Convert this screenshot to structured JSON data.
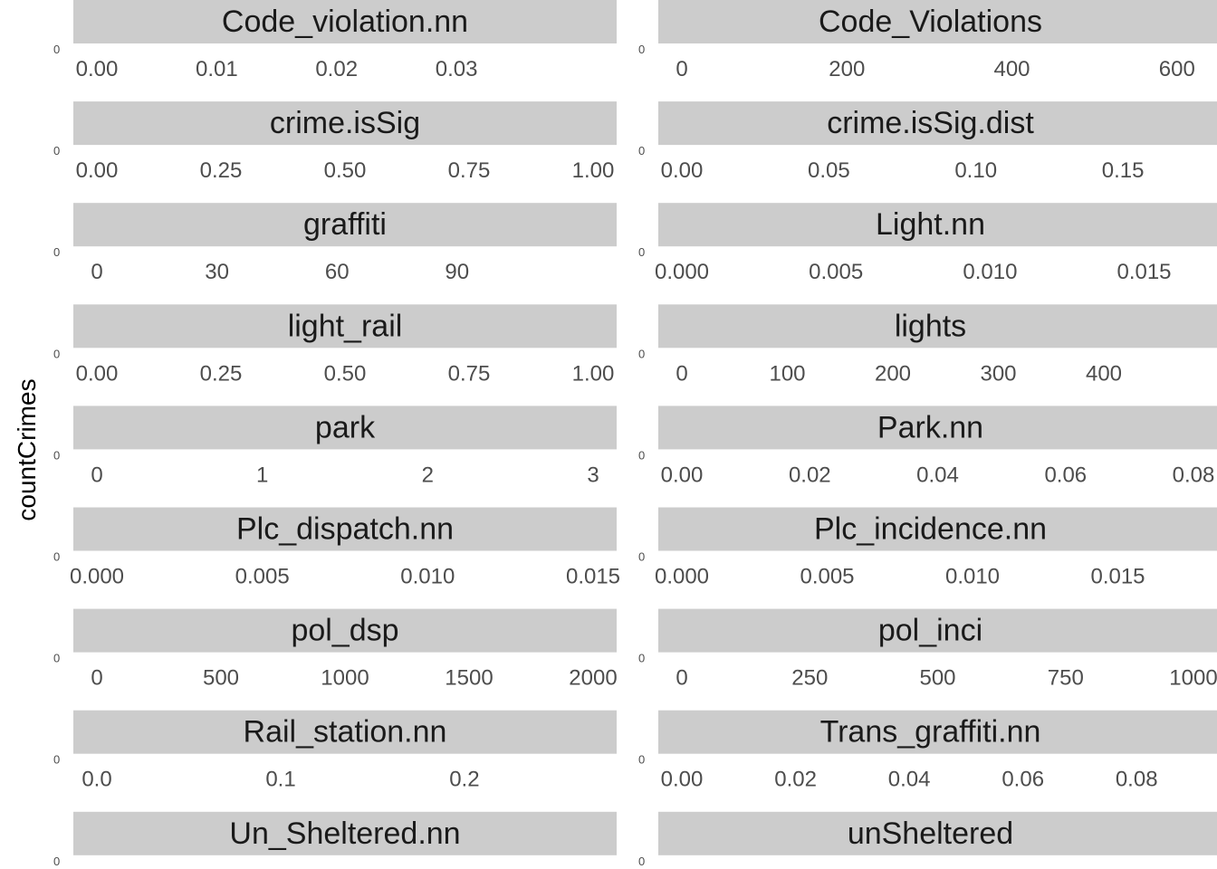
{
  "chart_data": {
    "type": "scatter",
    "ylabel": "countCrimes",
    "facet_strip_color": "#cccccc",
    "tick_color": "#4d4d4d",
    "panels": [
      {
        "title": "Code_violation.nn",
        "xticks": [
          "0.00",
          "0.01",
          "0.02",
          "0.03"
        ],
        "xticks_values": [
          0.0,
          0.01,
          0.02,
          0.03
        ],
        "xlim": [
          0.0,
          0.0414
        ]
      },
      {
        "title": "Code_Violations",
        "xticks": [
          "0",
          "200",
          "400",
          "600"
        ],
        "xticks_values": [
          0,
          200,
          400,
          600
        ],
        "xlim": [
          0,
          620
        ]
      },
      {
        "title": "crime.isSig",
        "xticks": [
          "0.00",
          "0.25",
          "0.50",
          "0.75",
          "1.00"
        ],
        "xticks_values": [
          0.0,
          0.25,
          0.5,
          0.75,
          1.0
        ],
        "xlim": [
          0.0,
          1.0
        ]
      },
      {
        "title": "crime.isSig.dist",
        "xticks": [
          "0.00",
          "0.05",
          "0.10",
          "0.15"
        ],
        "xticks_values": [
          0.0,
          0.05,
          0.1,
          0.15
        ],
        "xlim": [
          0.0,
          0.174
        ]
      },
      {
        "title": "graffiti",
        "xticks": [
          "0",
          "30",
          "60",
          "90"
        ],
        "xticks_values": [
          0,
          30,
          60,
          90
        ],
        "xlim": [
          0,
          124
        ]
      },
      {
        "title": "Light.nn",
        "xticks": [
          "0.000",
          "0.005",
          "0.010",
          "0.015"
        ],
        "xticks_values": [
          0.0,
          0.005,
          0.01,
          0.015
        ],
        "xlim": [
          0.0,
          0.0166
        ]
      },
      {
        "title": "light_rail",
        "xticks": [
          "0.00",
          "0.25",
          "0.50",
          "0.75",
          "1.00"
        ],
        "xticks_values": [
          0.0,
          0.25,
          0.5,
          0.75,
          1.0
        ],
        "xlim": [
          0.0,
          1.0
        ]
      },
      {
        "title": "lights",
        "xticks": [
          "0",
          "100",
          "200",
          "300",
          "400"
        ],
        "xticks_values": [
          0,
          100,
          200,
          300,
          400
        ],
        "xlim": [
          0,
          485
        ]
      },
      {
        "title": "park",
        "xticks": [
          "0",
          "1",
          "2",
          "3"
        ],
        "xticks_values": [
          0,
          1,
          2,
          3
        ],
        "xlim": [
          0,
          3
        ]
      },
      {
        "title": "Park.nn",
        "xticks": [
          "0.00",
          "0.02",
          "0.04",
          "0.06",
          "0.08"
        ],
        "xticks_values": [
          0.0,
          0.02,
          0.04,
          0.06,
          0.08
        ],
        "xlim": [
          0.0,
          0.08
        ]
      },
      {
        "title": "Plc_dispatch.nn",
        "xticks": [
          "0.000",
          "0.005",
          "0.010",
          "0.015"
        ],
        "xticks_values": [
          0.0,
          0.005,
          0.01,
          0.015
        ],
        "xlim": [
          0.0,
          0.015
        ]
      },
      {
        "title": "Plc_incidence.nn",
        "xticks": [
          "0.000",
          "0.005",
          "0.010",
          "0.015"
        ],
        "xticks_values": [
          0.0,
          0.005,
          0.01,
          0.015
        ],
        "xlim": [
          0.0,
          0.0176
        ]
      },
      {
        "title": "pol_dsp",
        "xticks": [
          "0",
          "500",
          "1000",
          "1500",
          "2000"
        ],
        "xticks_values": [
          0,
          500,
          1000,
          1500,
          2000
        ],
        "xlim": [
          0,
          2000
        ]
      },
      {
        "title": "pol_inci",
        "xticks": [
          "0",
          "250",
          "500",
          "750",
          "1000"
        ],
        "xticks_values": [
          0,
          250,
          500,
          750,
          1000
        ],
        "xlim": [
          0,
          1000
        ]
      },
      {
        "title": "Rail_station.nn",
        "xticks": [
          "0.0",
          "0.1",
          "0.2"
        ],
        "xticks_values": [
          0.0,
          0.1,
          0.2
        ],
        "xlim": [
          0.0,
          0.27
        ]
      },
      {
        "title": "Trans_graffiti.nn",
        "xticks": [
          "0.00",
          "0.02",
          "0.04",
          "0.06",
          "0.08"
        ],
        "xticks_values": [
          0.0,
          0.02,
          0.04,
          0.06,
          0.08
        ],
        "xlim": [
          0.0,
          0.09
        ]
      },
      {
        "title": "Un_Sheltered.nn",
        "xticks": [],
        "xticks_values": [],
        "xlim": [
          0.0,
          1.0
        ]
      },
      {
        "title": "unSheltered",
        "xticks": [],
        "xticks_values": [],
        "xlim": [
          0.0,
          1.0
        ]
      }
    ]
  }
}
